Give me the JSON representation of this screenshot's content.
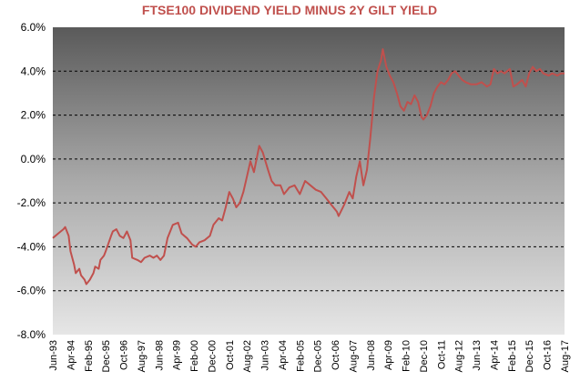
{
  "chart_data": {
    "type": "line",
    "title": "FTSE100 DIVIDEND YIELD MINUS 2Y GILT YIELD",
    "title_color": "#C0504D",
    "line_color": "#C0504D",
    "xlabel": "",
    "ylabel": "",
    "ylim": [
      -8,
      6
    ],
    "y_ticks": [
      6,
      4,
      2,
      0,
      -2,
      -4,
      -6,
      -8
    ],
    "y_tick_labels": [
      "6.0%",
      "4.0%",
      "2.0%",
      "0.0%",
      "-2.0%",
      "-4.0%",
      "-6.0%",
      "-8.0%"
    ],
    "x_range": [
      "1993-06",
      "2017-08"
    ],
    "x_tick_labels": [
      "Jun-93",
      "Apr-94",
      "Feb-95",
      "Dec-95",
      "Oct-96",
      "Aug-97",
      "Jun-98",
      "Apr-99",
      "Feb-00",
      "Dec-00",
      "Oct-01",
      "Aug-02",
      "Jun-03",
      "Apr-04",
      "Feb-05",
      "Dec-05",
      "Oct-06",
      "Aug-07",
      "Jun-08",
      "Apr-09",
      "Feb-10",
      "Dec-10",
      "Oct-11",
      "Aug-12",
      "Jun-13",
      "Apr-14",
      "Feb-15",
      "Dec-15",
      "Oct-16",
      "Aug-17"
    ],
    "grid": "horizontal dashed",
    "background": "gradient dark grey to light grey",
    "series": [
      {
        "points": [
          [
            "1993-06",
            -3.6
          ],
          [
            "1993-09",
            -3.4
          ],
          [
            "1993-12",
            -3.2
          ],
          [
            "1994-01",
            -3.1
          ],
          [
            "1994-03",
            -3.5
          ],
          [
            "1994-04",
            -4.2
          ],
          [
            "1994-06",
            -4.8
          ],
          [
            "1994-07",
            -5.2
          ],
          [
            "1994-09",
            -5.0
          ],
          [
            "1994-10",
            -5.3
          ],
          [
            "1994-12",
            -5.5
          ],
          [
            "1995-01",
            -5.7
          ],
          [
            "1995-03",
            -5.5
          ],
          [
            "1995-05",
            -5.2
          ],
          [
            "1995-06",
            -4.9
          ],
          [
            "1995-08",
            -5.0
          ],
          [
            "1995-09",
            -4.6
          ],
          [
            "1995-11",
            -4.4
          ],
          [
            "1995-12",
            -4.2
          ],
          [
            "1996-03",
            -3.5
          ],
          [
            "1996-04",
            -3.3
          ],
          [
            "1996-06",
            -3.2
          ],
          [
            "1996-08",
            -3.5
          ],
          [
            "1996-10",
            -3.6
          ],
          [
            "1996-12",
            -3.3
          ],
          [
            "1997-02",
            -3.7
          ],
          [
            "1997-03",
            -4.5
          ],
          [
            "1997-06",
            -4.6
          ],
          [
            "1997-08",
            -4.7
          ],
          [
            "1997-10",
            -4.5
          ],
          [
            "1998-01",
            -4.4
          ],
          [
            "1998-03",
            -4.5
          ],
          [
            "1998-05",
            -4.4
          ],
          [
            "1998-07",
            -4.6
          ],
          [
            "1998-09",
            -4.4
          ],
          [
            "1998-11",
            -3.6
          ],
          [
            "1999-02",
            -3.0
          ],
          [
            "1999-05",
            -2.9
          ],
          [
            "1999-07",
            -3.4
          ],
          [
            "1999-10",
            -3.6
          ],
          [
            "2000-01",
            -3.9
          ],
          [
            "2000-03",
            -4.0
          ],
          [
            "2000-05",
            -3.8
          ],
          [
            "2000-08",
            -3.7
          ],
          [
            "2000-11",
            -3.5
          ],
          [
            "2001-01",
            -3.0
          ],
          [
            "2001-04",
            -2.7
          ],
          [
            "2001-06",
            -2.8
          ],
          [
            "2001-08",
            -2.2
          ],
          [
            "2001-10",
            -1.5
          ],
          [
            "2001-12",
            -1.8
          ],
          [
            "2002-02",
            -2.2
          ],
          [
            "2002-04",
            -2.0
          ],
          [
            "2002-06",
            -1.5
          ],
          [
            "2002-08",
            -0.8
          ],
          [
            "2002-10",
            -0.1
          ],
          [
            "2002-12",
            -0.6
          ],
          [
            "2003-03",
            0.6
          ],
          [
            "2003-05",
            0.3
          ],
          [
            "2003-08",
            -0.5
          ],
          [
            "2003-10",
            -1.0
          ],
          [
            "2003-12",
            -1.2
          ],
          [
            "2004-03",
            -1.2
          ],
          [
            "2004-05",
            -1.6
          ],
          [
            "2004-08",
            -1.3
          ],
          [
            "2004-11",
            -1.2
          ],
          [
            "2005-02",
            -1.6
          ],
          [
            "2005-05",
            -1.0
          ],
          [
            "2005-08",
            -1.2
          ],
          [
            "2005-11",
            -1.4
          ],
          [
            "2006-02",
            -1.5
          ],
          [
            "2006-05",
            -1.8
          ],
          [
            "2006-08",
            -2.1
          ],
          [
            "2006-11",
            -2.4
          ],
          [
            "2006-12",
            -2.6
          ],
          [
            "2007-03",
            -2.1
          ],
          [
            "2007-06",
            -1.5
          ],
          [
            "2007-08",
            -1.8
          ],
          [
            "2007-10",
            -0.8
          ],
          [
            "2007-12",
            -0.1
          ],
          [
            "2008-02",
            -1.2
          ],
          [
            "2008-04",
            -0.5
          ],
          [
            "2008-06",
            1.0
          ],
          [
            "2008-08",
            2.8
          ],
          [
            "2008-10",
            4.0
          ],
          [
            "2008-12",
            4.5
          ],
          [
            "2009-01",
            5.0
          ],
          [
            "2009-03",
            4.2
          ],
          [
            "2009-05",
            3.8
          ],
          [
            "2009-07",
            3.5
          ],
          [
            "2009-09",
            3.0
          ],
          [
            "2009-11",
            2.4
          ],
          [
            "2010-01",
            2.2
          ],
          [
            "2010-03",
            2.6
          ],
          [
            "2010-05",
            2.5
          ],
          [
            "2010-07",
            2.9
          ],
          [
            "2010-09",
            2.6
          ],
          [
            "2010-11",
            1.9
          ],
          [
            "2010-12",
            1.8
          ],
          [
            "2011-02",
            2.0
          ],
          [
            "2011-04",
            2.4
          ],
          [
            "2011-06",
            3.0
          ],
          [
            "2011-08",
            3.3
          ],
          [
            "2011-10",
            3.5
          ],
          [
            "2011-12",
            3.4
          ],
          [
            "2012-02",
            3.6
          ],
          [
            "2012-04",
            3.9
          ],
          [
            "2012-06",
            4.0
          ],
          [
            "2012-08",
            3.8
          ],
          [
            "2012-10",
            3.6
          ],
          [
            "2012-12",
            3.5
          ],
          [
            "2013-03",
            3.4
          ],
          [
            "2013-06",
            3.4
          ],
          [
            "2013-09",
            3.5
          ],
          [
            "2013-12",
            3.3
          ],
          [
            "2014-02",
            3.4
          ],
          [
            "2014-04",
            4.1
          ],
          [
            "2014-06",
            3.9
          ],
          [
            "2014-08",
            4.0
          ],
          [
            "2014-10",
            3.9
          ],
          [
            "2015-01",
            4.1
          ],
          [
            "2015-03",
            3.3
          ],
          [
            "2015-05",
            3.4
          ],
          [
            "2015-08",
            3.6
          ],
          [
            "2015-10",
            3.3
          ],
          [
            "2015-12",
            3.9
          ],
          [
            "2016-02",
            4.2
          ],
          [
            "2016-04",
            4.0
          ],
          [
            "2016-06",
            4.1
          ],
          [
            "2016-08",
            3.9
          ],
          [
            "2016-11",
            3.8
          ],
          [
            "2017-01",
            3.9
          ],
          [
            "2017-04",
            3.8
          ],
          [
            "2017-06",
            3.9
          ],
          [
            "2017-08",
            3.9
          ]
        ]
      }
    ]
  }
}
